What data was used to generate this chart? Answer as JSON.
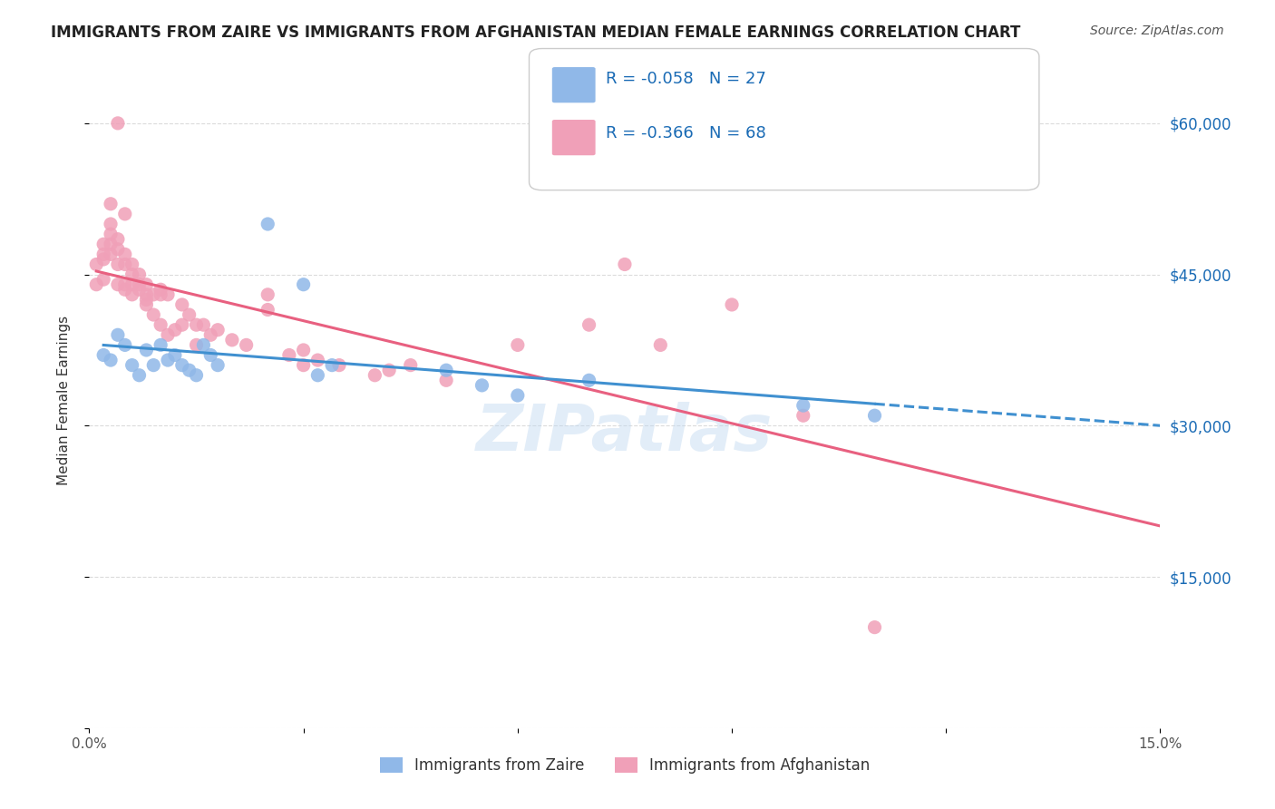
{
  "title": "IMMIGRANTS FROM ZAIRE VS IMMIGRANTS FROM AFGHANISTAN MEDIAN FEMALE EARNINGS CORRELATION CHART",
  "source": "Source: ZipAtlas.com",
  "xlabel_bottom": "",
  "ylabel": "Median Female Earnings",
  "x_ticks": [
    0.0,
    0.03,
    0.06,
    0.09,
    0.12,
    0.15
  ],
  "x_tick_labels": [
    "0.0%",
    "",
    "",
    "",
    "",
    "15.0%"
  ],
  "y_ticks": [
    0,
    15000,
    30000,
    45000,
    60000
  ],
  "y_tick_labels_right": [
    "",
    "$15,000",
    "$30,000",
    "$45,000",
    "$60,000"
  ],
  "xlim": [
    0.0,
    0.15
  ],
  "ylim": [
    0,
    65000
  ],
  "legend_entries": [
    {
      "label": "R = -0.058   N = 27",
      "color": "#a8c8f0",
      "text_color": "#1a6bb5"
    },
    {
      "label": "R = -0.366   N = 68",
      "color": "#f5b8c8",
      "text_color": "#1a6bb5"
    }
  ],
  "legend_label_zaire": "Immigrants from Zaire",
  "legend_label_afghanistan": "Immigrants from Afghanistan",
  "zaire_color": "#90b8e8",
  "afghanistan_color": "#f0a0b8",
  "trendline_zaire_color": "#4090d0",
  "trendline_afghanistan_color": "#e86080",
  "watermark": "ZIPatlas",
  "background_color": "#ffffff",
  "zaire_points": [
    [
      0.002,
      37000
    ],
    [
      0.003,
      36500
    ],
    [
      0.004,
      39000
    ],
    [
      0.005,
      38000
    ],
    [
      0.006,
      36000
    ],
    [
      0.007,
      35000
    ],
    [
      0.008,
      37500
    ],
    [
      0.009,
      36000
    ],
    [
      0.01,
      38000
    ],
    [
      0.011,
      36500
    ],
    [
      0.012,
      37000
    ],
    [
      0.013,
      36000
    ],
    [
      0.014,
      35500
    ],
    [
      0.015,
      35000
    ],
    [
      0.016,
      38000
    ],
    [
      0.017,
      37000
    ],
    [
      0.018,
      36000
    ],
    [
      0.025,
      50000
    ],
    [
      0.03,
      44000
    ],
    [
      0.032,
      35000
    ],
    [
      0.034,
      36000
    ],
    [
      0.05,
      35500
    ],
    [
      0.055,
      34000
    ],
    [
      0.06,
      33000
    ],
    [
      0.07,
      34500
    ],
    [
      0.1,
      32000
    ],
    [
      0.11,
      31000
    ]
  ],
  "afghanistan_points": [
    [
      0.001,
      44000
    ],
    [
      0.001,
      46000
    ],
    [
      0.002,
      44500
    ],
    [
      0.002,
      48000
    ],
    [
      0.002,
      47000
    ],
    [
      0.002,
      46500
    ],
    [
      0.003,
      47000
    ],
    [
      0.003,
      49000
    ],
    [
      0.003,
      48000
    ],
    [
      0.003,
      50000
    ],
    [
      0.003,
      52000
    ],
    [
      0.004,
      48500
    ],
    [
      0.004,
      46000
    ],
    [
      0.004,
      47500
    ],
    [
      0.004,
      44000
    ],
    [
      0.004,
      60000
    ],
    [
      0.005,
      47000
    ],
    [
      0.005,
      43500
    ],
    [
      0.005,
      46000
    ],
    [
      0.005,
      51000
    ],
    [
      0.005,
      44000
    ],
    [
      0.006,
      44000
    ],
    [
      0.006,
      43000
    ],
    [
      0.006,
      46000
    ],
    [
      0.006,
      45000
    ],
    [
      0.007,
      45000
    ],
    [
      0.007,
      44000
    ],
    [
      0.007,
      43500
    ],
    [
      0.008,
      44000
    ],
    [
      0.008,
      43000
    ],
    [
      0.008,
      42000
    ],
    [
      0.008,
      42500
    ],
    [
      0.009,
      43000
    ],
    [
      0.009,
      41000
    ],
    [
      0.01,
      43500
    ],
    [
      0.01,
      40000
    ],
    [
      0.01,
      43000
    ],
    [
      0.011,
      43000
    ],
    [
      0.011,
      39000
    ],
    [
      0.012,
      39500
    ],
    [
      0.013,
      40000
    ],
    [
      0.013,
      42000
    ],
    [
      0.014,
      41000
    ],
    [
      0.015,
      40000
    ],
    [
      0.015,
      38000
    ],
    [
      0.016,
      40000
    ],
    [
      0.017,
      39000
    ],
    [
      0.018,
      39500
    ],
    [
      0.02,
      38500
    ],
    [
      0.022,
      38000
    ],
    [
      0.025,
      43000
    ],
    [
      0.025,
      41500
    ],
    [
      0.028,
      37000
    ],
    [
      0.03,
      37500
    ],
    [
      0.03,
      36000
    ],
    [
      0.032,
      36500
    ],
    [
      0.035,
      36000
    ],
    [
      0.04,
      35000
    ],
    [
      0.042,
      35500
    ],
    [
      0.045,
      36000
    ],
    [
      0.05,
      34500
    ],
    [
      0.06,
      38000
    ],
    [
      0.07,
      40000
    ],
    [
      0.075,
      46000
    ],
    [
      0.08,
      38000
    ],
    [
      0.09,
      42000
    ],
    [
      0.1,
      31000
    ],
    [
      0.11,
      10000
    ]
  ]
}
